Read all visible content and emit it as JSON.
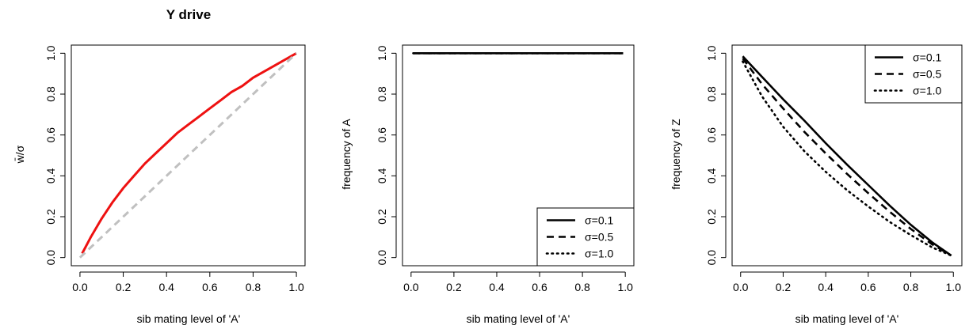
{
  "chart_data": [
    {
      "type": "line",
      "title": "Y drive",
      "xlabel": "sib mating level of 'A'",
      "ylabel": "w̄/σ",
      "xlim": [
        0,
        1
      ],
      "ylim": [
        0,
        1
      ],
      "x_ticks": [
        "0.0",
        "0.2",
        "0.4",
        "0.6",
        "0.8",
        "1.0"
      ],
      "y_ticks": [
        "0.0",
        "0.2",
        "0.4",
        "0.6",
        "0.8",
        "1.0"
      ],
      "grid": false,
      "legend": null,
      "series": [
        {
          "color": "#ee1111",
          "dash": "solid",
          "x": [
            0.01,
            0.05,
            0.1,
            0.15,
            0.2,
            0.25,
            0.3,
            0.35,
            0.4,
            0.45,
            0.5,
            0.55,
            0.6,
            0.65,
            0.7,
            0.75,
            0.8,
            0.85,
            0.9,
            0.95,
            1.0
          ],
          "y": [
            0.02,
            0.1,
            0.19,
            0.27,
            0.34,
            0.4,
            0.46,
            0.51,
            0.56,
            0.61,
            0.65,
            0.69,
            0.73,
            0.77,
            0.81,
            0.84,
            0.88,
            0.91,
            0.94,
            0.97,
            1.0
          ]
        },
        {
          "color": "#c0c0c0",
          "dash": "dashed",
          "x": [
            0.0,
            1.0
          ],
          "y": [
            0.0,
            1.0
          ]
        }
      ]
    },
    {
      "type": "line",
      "title": "",
      "xlabel": "sib mating level of 'A'",
      "ylabel": "frequency of A",
      "xlim": [
        0,
        1
      ],
      "ylim": [
        0,
        1
      ],
      "x_ticks": [
        "0.0",
        "0.2",
        "0.4",
        "0.6",
        "0.8",
        "1.0"
      ],
      "y_ticks": [
        "0.0",
        "0.2",
        "0.4",
        "0.6",
        "0.8",
        "1.0"
      ],
      "grid": false,
      "legend": {
        "position": "bottom-right",
        "entries": [
          {
            "label": "σ=0.1",
            "dash": "solid"
          },
          {
            "label": "σ=0.5",
            "dash": "dashed"
          },
          {
            "label": "σ=1.0",
            "dash": "dotted"
          }
        ]
      },
      "series": [
        {
          "name": "σ=0.1",
          "color": "#000000",
          "dash": "solid",
          "x": [
            0.01,
            0.99
          ],
          "y": [
            1.0,
            1.0
          ]
        },
        {
          "name": "σ=0.5",
          "color": "#000000",
          "dash": "dashed",
          "x": [
            0.01,
            0.99
          ],
          "y": [
            1.0,
            1.0
          ]
        },
        {
          "name": "σ=1.0",
          "color": "#000000",
          "dash": "dotted",
          "x": [
            0.01,
            0.99
          ],
          "y": [
            1.0,
            1.0
          ]
        }
      ]
    },
    {
      "type": "line",
      "title": "",
      "xlabel": "sib mating level of 'A'",
      "ylabel": "frequency of Z",
      "xlim": [
        0,
        1
      ],
      "ylim": [
        0,
        1
      ],
      "x_ticks": [
        "0.0",
        "0.2",
        "0.4",
        "0.6",
        "0.8",
        "1.0"
      ],
      "y_ticks": [
        "0.0",
        "0.2",
        "0.4",
        "0.6",
        "0.8",
        "1.0"
      ],
      "grid": false,
      "legend": {
        "position": "top-right",
        "entries": [
          {
            "label": "σ=0.1",
            "dash": "solid"
          },
          {
            "label": "σ=0.5",
            "dash": "dashed"
          },
          {
            "label": "σ=1.0",
            "dash": "dotted"
          }
        ]
      },
      "series": [
        {
          "name": "σ=0.1",
          "color": "#000000",
          "dash": "solid",
          "x": [
            0.01,
            0.1,
            0.2,
            0.3,
            0.4,
            0.5,
            0.6,
            0.7,
            0.8,
            0.9,
            0.99
          ],
          "y": [
            0.985,
            0.885,
            0.775,
            0.67,
            0.56,
            0.455,
            0.355,
            0.255,
            0.16,
            0.075,
            0.01
          ]
        },
        {
          "name": "σ=0.5",
          "color": "#000000",
          "dash": "dashed",
          "x": [
            0.01,
            0.1,
            0.2,
            0.3,
            0.4,
            0.5,
            0.6,
            0.7,
            0.8,
            0.9,
            0.99
          ],
          "y": [
            0.975,
            0.85,
            0.73,
            0.615,
            0.51,
            0.41,
            0.315,
            0.225,
            0.14,
            0.065,
            0.01
          ]
        },
        {
          "name": "σ=1.0",
          "color": "#000000",
          "dash": "dotted",
          "x": [
            0.01,
            0.1,
            0.2,
            0.3,
            0.4,
            0.5,
            0.6,
            0.7,
            0.8,
            0.9,
            0.99
          ],
          "y": [
            0.96,
            0.79,
            0.64,
            0.52,
            0.42,
            0.33,
            0.25,
            0.175,
            0.11,
            0.05,
            0.01
          ]
        }
      ]
    }
  ]
}
